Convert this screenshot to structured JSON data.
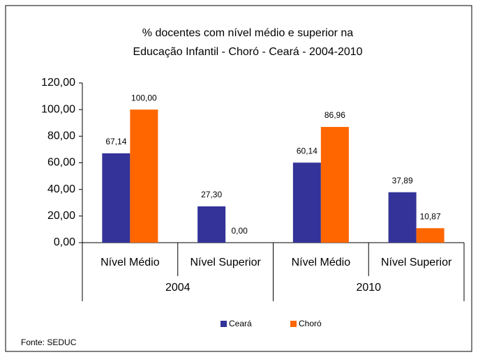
{
  "chart_data": {
    "type": "bar",
    "title": [
      "% docentes com nível médio e superior na",
      "Educação Infantil - Choró  -  Ceará - 2004-2010"
    ],
    "categories": [
      "Nível Médio",
      "Nível Superior",
      "Nível Médio",
      "Nível Superior"
    ],
    "category_groups": [
      "2004",
      "2010"
    ],
    "series": [
      {
        "name": "Ceará",
        "color": "#333399",
        "values": [
          67.14,
          27.3,
          60.14,
          37.89
        ],
        "value_labels": [
          "67,14",
          "27,30",
          "60,14",
          "37,89"
        ]
      },
      {
        "name": "Choró",
        "color": "#ff6600",
        "values": [
          100.0,
          0.0,
          86.96,
          10.87
        ],
        "value_labels": [
          "100,00",
          "0,00",
          "86,96",
          "10,87"
        ]
      }
    ],
    "ylim": [
      0,
      120
    ],
    "yticks": [
      {
        "value": 0,
        "label": "0,00"
      },
      {
        "value": 20,
        "label": "20,00"
      },
      {
        "value": 40,
        "label": "40,00"
      },
      {
        "value": 60,
        "label": "60,00"
      },
      {
        "value": 80,
        "label": "80,00"
      },
      {
        "value": 100,
        "label": "100,00"
      },
      {
        "value": 120,
        "label": "120,00"
      }
    ],
    "grid": false,
    "legend": "bottom",
    "source": "Fonte: SEDUC"
  }
}
